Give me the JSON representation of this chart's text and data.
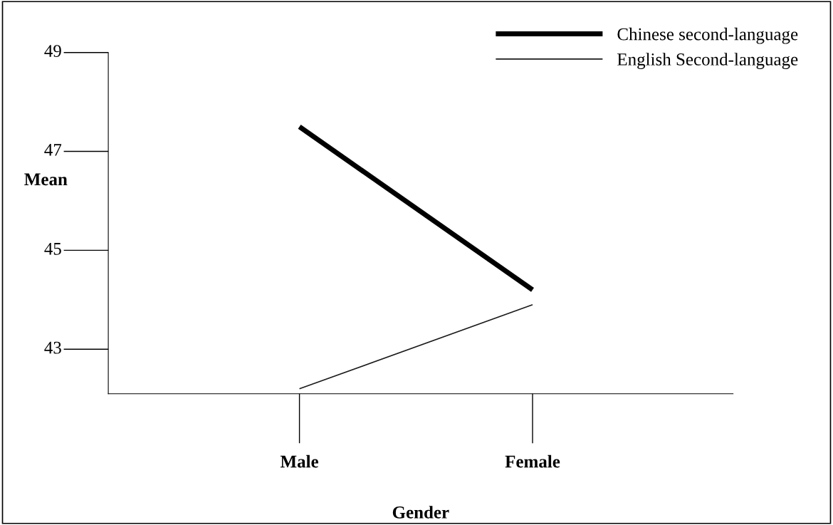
{
  "chart_data": {
    "type": "line",
    "xlabel": "Gender",
    "ylabel": "Mean",
    "categories": [
      "Male",
      "Female"
    ],
    "series": [
      {
        "name": "Chinese second-language",
        "color": "#000000",
        "values": [
          47.5,
          44.2
        ]
      },
      {
        "name": "English Second-language",
        "color": "#1a1a1a",
        "values": [
          42.2,
          43.9
        ]
      }
    ],
    "ylim": [
      42.1,
      49
    ],
    "yticks": [
      43,
      45,
      47,
      49
    ],
    "grid": false,
    "legend": "top right",
    "marker": "none",
    "line_style": "solid"
  }
}
